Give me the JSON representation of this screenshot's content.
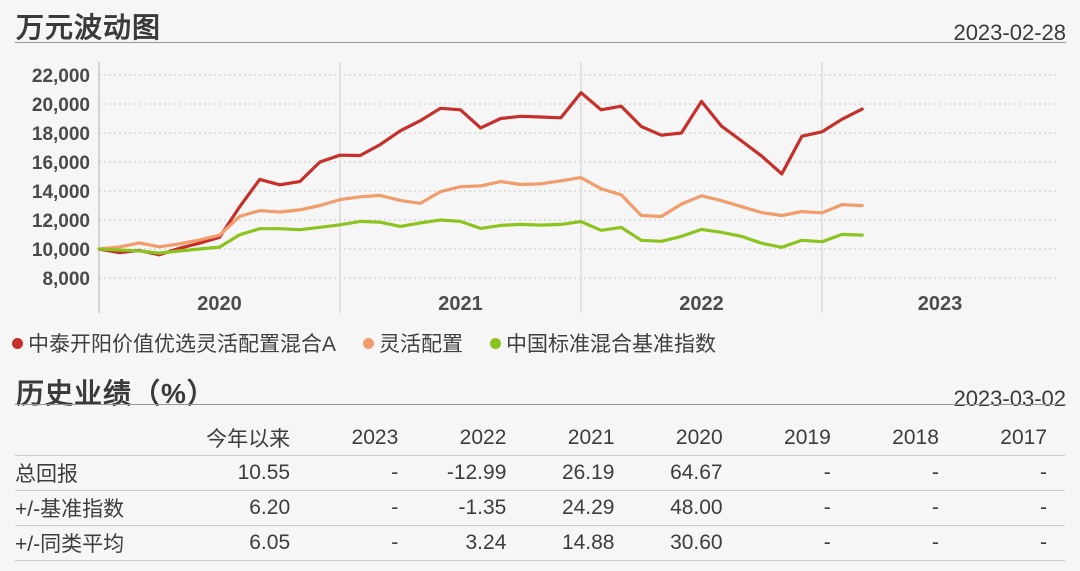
{
  "chart_section": {
    "title": "万元波动图",
    "date": "2023-02-28"
  },
  "table_section": {
    "title": "历史业绩（%）",
    "date": "2023-03-02",
    "columns": [
      "今年以来",
      "2023",
      "2022",
      "2021",
      "2020",
      "2019",
      "2018",
      "2017"
    ],
    "rows": [
      {
        "label": "总回报",
        "values": [
          "10.55",
          "-",
          "-12.99",
          "26.19",
          "64.67",
          "-",
          "-",
          "-"
        ]
      },
      {
        "label": "+/-基准指数",
        "values": [
          "6.20",
          "-",
          "-1.35",
          "24.29",
          "48.00",
          "-",
          "-",
          "-"
        ]
      },
      {
        "label": "+/-同类平均",
        "values": [
          "6.05",
          "-",
          "3.24",
          "14.88",
          "30.60",
          "-",
          "-",
          "-"
        ]
      }
    ]
  },
  "chart_data": {
    "type": "line",
    "title": "万元波动图",
    "as_of_date": "2023-02-28",
    "x_tick_labels": [
      "2020",
      "2021",
      "2022",
      "2023"
    ],
    "x_monthly_range": [
      "2020-01",
      "2023-02"
    ],
    "y_ticks": [
      22000,
      20000,
      18000,
      16000,
      14000,
      12000,
      10000,
      8000
    ],
    "ylim": [
      7000,
      23000
    ],
    "grid": "dotted-horizontal, solid vertical year separators",
    "legend_position": "bottom",
    "line_colors": {
      "fund": "#c62f2a",
      "category": "#f19c6b",
      "benchmark": "#8cc31f"
    },
    "series": [
      {
        "name": "中泰开阳价值优选灵活配置混合A",
        "color": "#c62f2a",
        "values": [
          10000,
          9750,
          9900,
          9600,
          10050,
          10400,
          10800,
          12900,
          14800,
          14430,
          14650,
          16000,
          16467,
          16450,
          17200,
          18150,
          18850,
          19700,
          19600,
          18350,
          19000,
          19150,
          19100,
          19050,
          20780,
          19600,
          19850,
          18450,
          17850,
          18000,
          20180,
          18470,
          17450,
          16400,
          15180,
          17780,
          18080,
          18950,
          19650
        ]
      },
      {
        "name": "灵活配置",
        "color": "#f19c6b",
        "values": [
          10000,
          10130,
          10420,
          10150,
          10350,
          10630,
          10950,
          12250,
          12650,
          12550,
          12700,
          13000,
          13407,
          13600,
          13700,
          13350,
          13150,
          13950,
          14300,
          14350,
          14650,
          14450,
          14500,
          14700,
          14923,
          14150,
          13740,
          12310,
          12240,
          13100,
          13670,
          13330,
          12920,
          12510,
          12310,
          12580,
          12500,
          13060,
          12990
        ]
      },
      {
        "name": "中国标准混合基准指数",
        "color": "#8cc31f",
        "values": [
          10000,
          9930,
          9860,
          9720,
          9860,
          10000,
          10130,
          10980,
          11400,
          11400,
          11330,
          11500,
          11667,
          11900,
          11850,
          11560,
          11800,
          12000,
          11900,
          11420,
          11630,
          11700,
          11650,
          11700,
          11889,
          11290,
          11490,
          10600,
          10530,
          10870,
          11350,
          11150,
          10870,
          10390,
          10120,
          10600,
          10505,
          11010,
          10962
        ]
      }
    ]
  }
}
